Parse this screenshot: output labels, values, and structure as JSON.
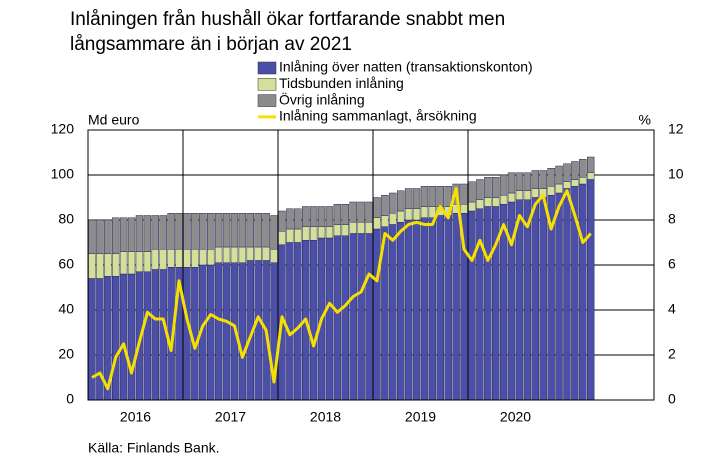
{
  "chart_data": {
    "type": "bar",
    "title": [
      "Inlåningen från hushåll ökar fortfarande snabbt men",
      "långsammare än i början av 2021"
    ],
    "y_label": "Md euro",
    "y2_label": "%",
    "source": "Källa: Finlands Bank.",
    "categories": [
      null,
      null,
      null,
      null,
      null,
      null,
      "2016",
      null,
      null,
      null,
      null,
      null,
      null,
      null,
      null,
      null,
      null,
      null,
      "2017",
      null,
      null,
      null,
      null,
      null,
      null,
      null,
      null,
      null,
      null,
      null,
      "2018",
      null,
      null,
      null,
      null,
      null,
      null,
      null,
      null,
      null,
      null,
      null,
      "2019",
      null,
      null,
      null,
      null,
      null,
      null,
      null,
      null,
      null,
      null,
      null,
      "2020",
      null,
      null,
      null,
      null,
      null,
      null,
      null,
      null,
      null
    ],
    "series": [
      {
        "name": "Inlåning över natten (transaktionskonton)",
        "color": "#4b4fa8",
        "stack": true,
        "values": [
          54,
          54,
          55,
          55,
          56,
          56,
          57,
          57,
          58,
          58,
          59,
          59,
          59,
          59,
          60,
          60,
          61,
          61,
          61,
          61,
          62,
          62,
          62,
          61,
          69,
          70,
          70,
          71,
          71,
          72,
          72,
          73,
          73,
          74,
          74,
          74,
          76,
          77,
          78,
          79,
          80,
          80,
          81,
          81,
          82,
          82,
          83,
          83,
          84,
          85,
          86,
          86,
          87,
          88,
          89,
          89,
          90,
          90,
          91,
          92,
          94,
          95,
          96,
          98
        ]
      },
      {
        "name": "Tidsbunden inlåning",
        "color": "#d4e09a",
        "stack": true,
        "values": [
          11,
          11,
          10,
          10,
          10,
          10,
          9,
          9,
          9,
          9,
          8,
          8,
          8,
          8,
          7,
          7,
          7,
          7,
          7,
          7,
          6,
          6,
          6,
          6,
          6,
          6,
          6,
          6,
          6,
          5,
          5,
          5,
          5,
          5,
          5,
          5,
          5,
          5,
          5,
          5,
          5,
          5,
          5,
          5,
          4,
          4,
          4,
          4,
          4,
          4,
          4,
          4,
          4,
          4,
          4,
          4,
          4,
          4,
          4,
          4,
          3,
          3,
          3,
          3
        ]
      },
      {
        "name": "Övrig inlåning",
        "color": "#8c8c8c",
        "stack": true,
        "values": [
          15,
          15,
          15,
          16,
          15,
          15,
          16,
          16,
          15,
          15,
          16,
          16,
          16,
          16,
          16,
          16,
          15,
          15,
          15,
          15,
          15,
          15,
          15,
          15,
          9,
          9,
          9,
          9,
          9,
          9,
          9,
          9,
          9,
          9,
          9,
          9,
          9,
          9,
          9,
          9,
          9,
          9,
          9,
          9,
          9,
          9,
          9,
          9,
          9,
          9,
          9,
          9,
          9,
          9,
          8,
          8,
          8,
          8,
          8,
          8,
          8,
          8,
          8,
          7
        ]
      },
      {
        "name": "Inlåning sammanlagt, årsökning",
        "color": "#f5e000",
        "type": "line",
        "axis": "y2",
        "values": [
          1.0,
          1.2,
          0.5,
          1.9,
          2.5,
          1.2,
          2.6,
          3.9,
          3.6,
          3.6,
          2.2,
          5.3,
          3.6,
          2.3,
          3.3,
          3.8,
          3.6,
          3.5,
          3.3,
          1.9,
          2.8,
          3.7,
          3.1,
          0.8,
          3.7,
          2.9,
          3.2,
          3.6,
          2.4,
          3.6,
          4.3,
          3.9,
          4.2,
          4.6,
          4.8,
          5.6,
          5.3,
          7.4,
          7.1,
          7.5,
          7.8,
          7.9,
          7.8,
          7.8,
          8.6,
          8.1,
          9.4,
          6.7,
          6.2,
          7.1,
          6.2,
          6.9,
          7.8,
          6.9,
          8.2,
          7.7,
          8.7,
          9.1,
          7.6,
          8.6,
          9.3,
          8.2,
          7.0,
          7.4
        ]
      }
    ],
    "ylim": [
      0,
      120
    ],
    "yticks": [
      0,
      20,
      40,
      60,
      80,
      100,
      120
    ],
    "y2lim": [
      0,
      12
    ],
    "y2ticks": [
      0,
      2,
      4,
      6,
      8,
      10,
      12
    ],
    "grid": true
  }
}
